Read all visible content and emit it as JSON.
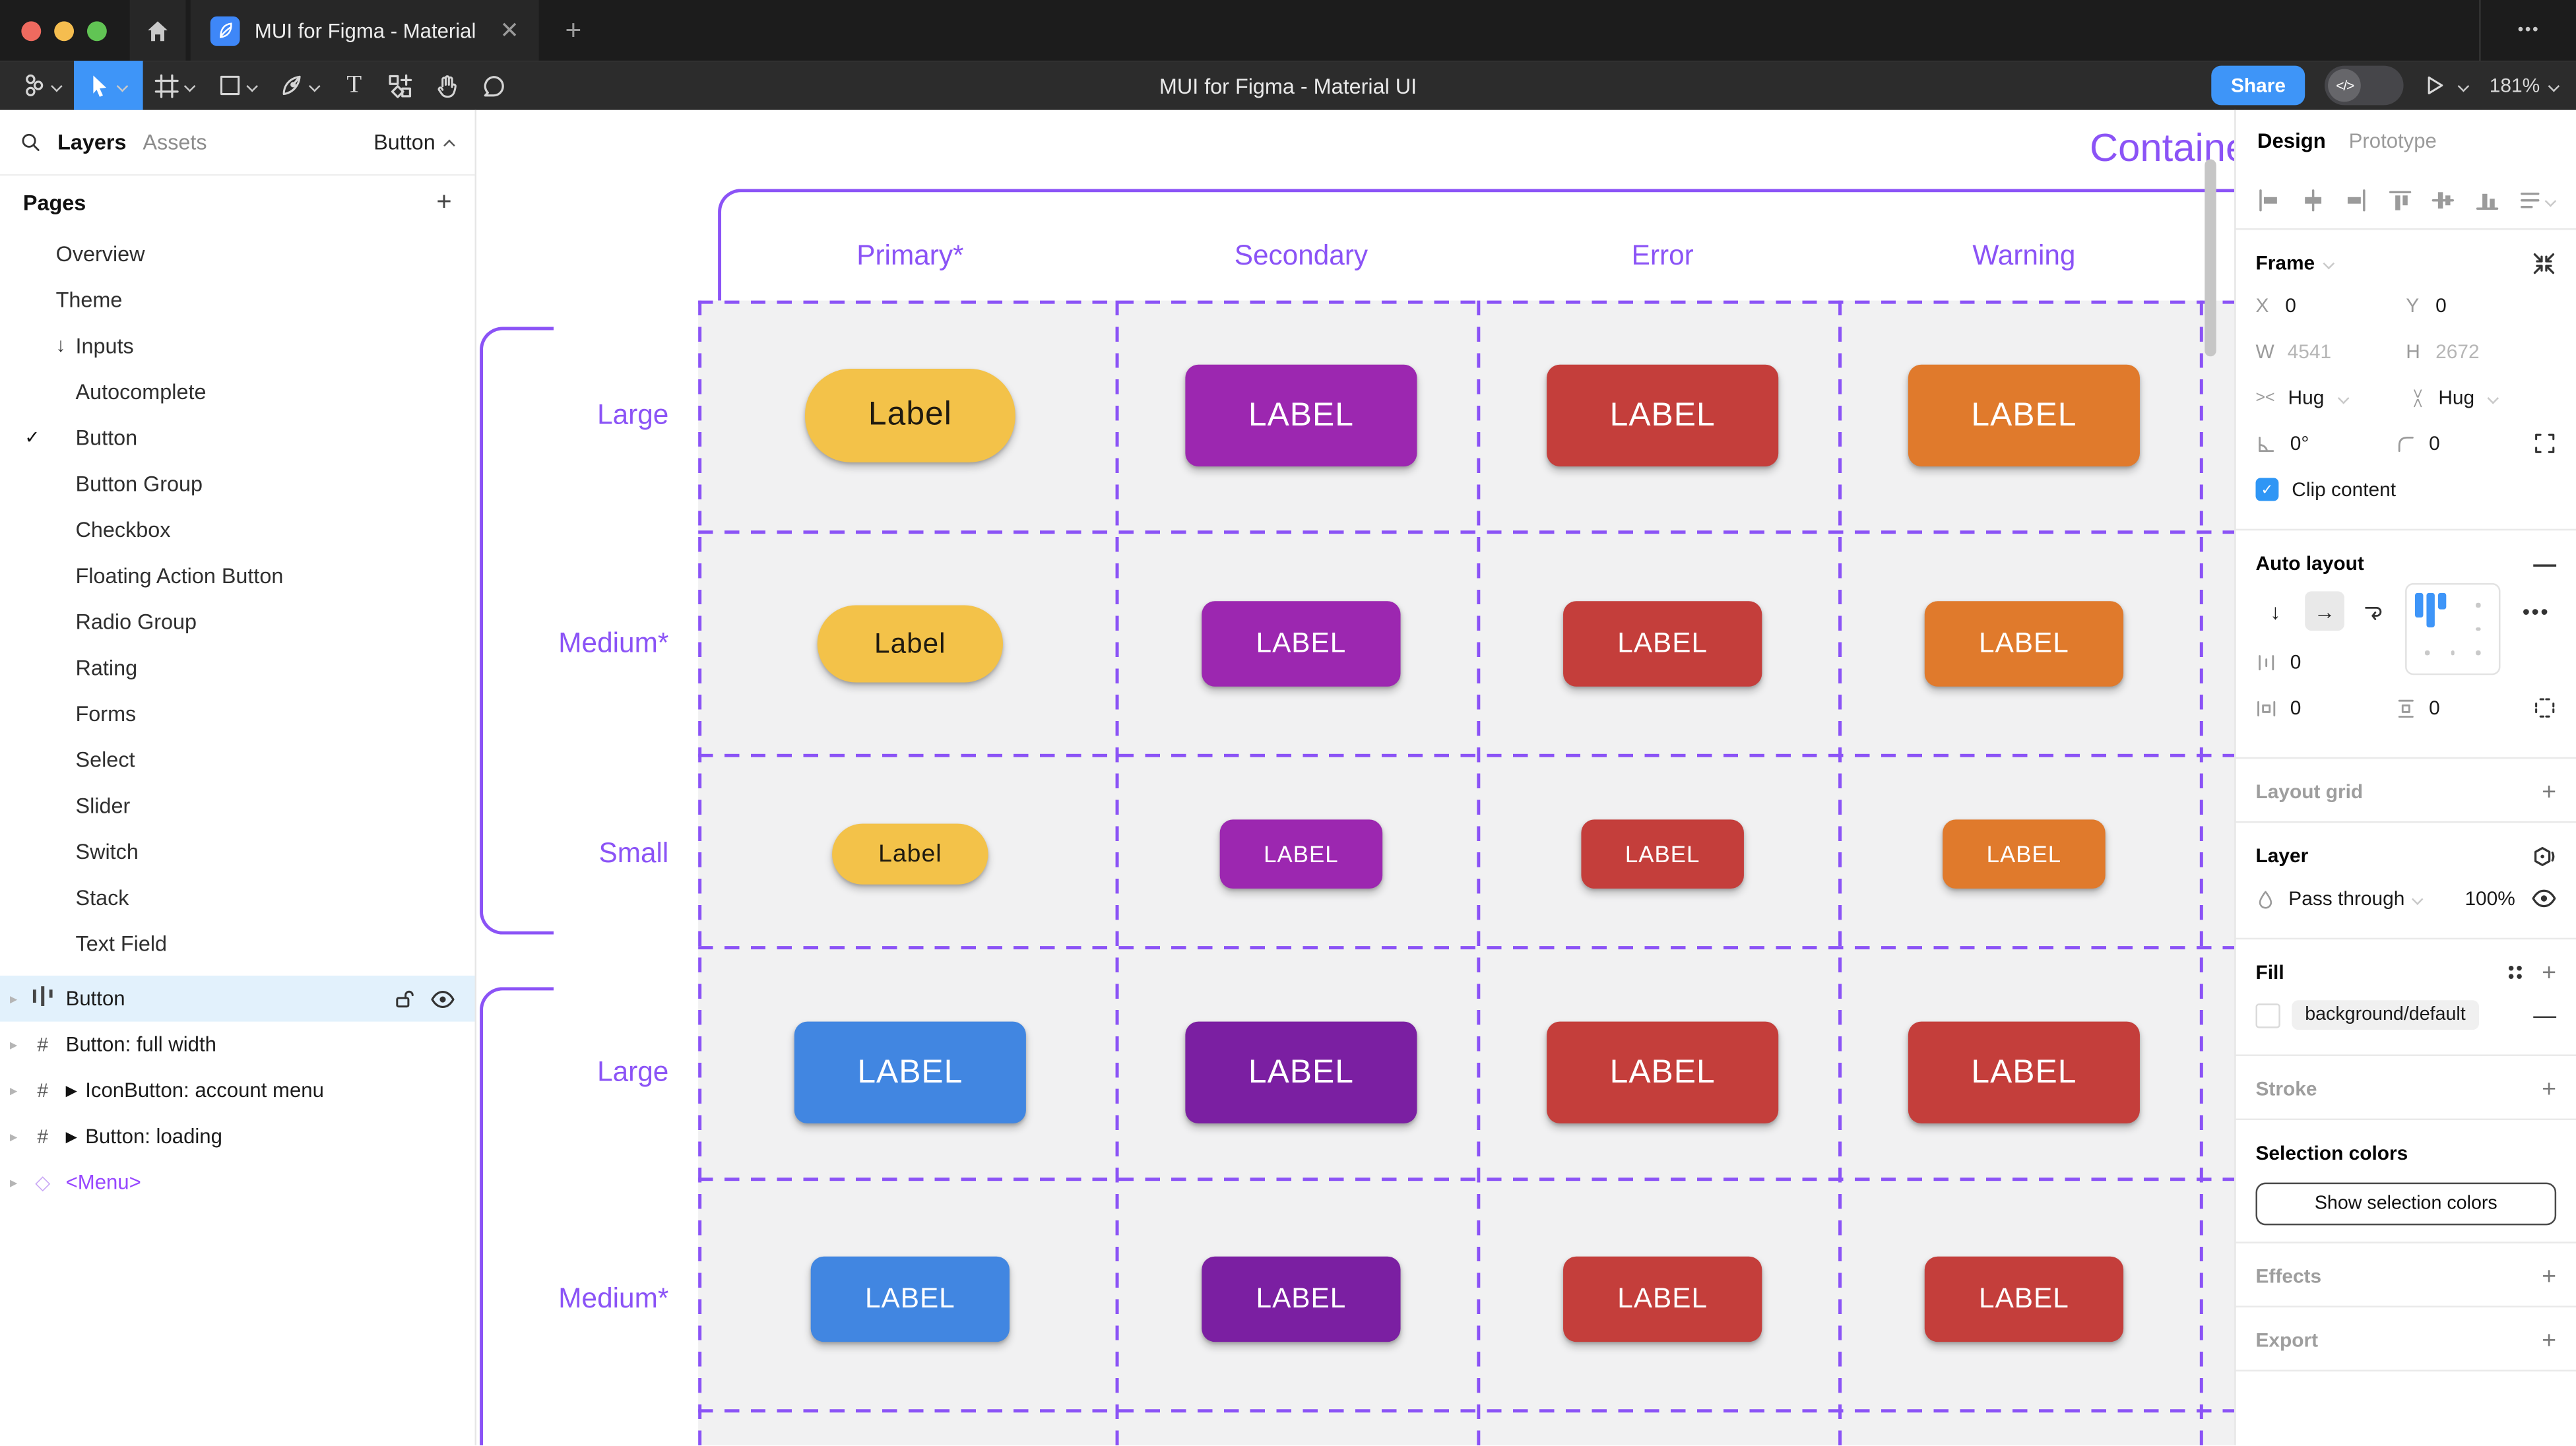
{
  "chrome": {
    "tab_title": "MUI for Figma - Material UI",
    "toolbar_title": "MUI for Figma - Material UI",
    "close_icon": "✕",
    "new_tab_icon": "+",
    "overflow_icon": "•••",
    "share_label": "Share",
    "dev_toggle_glyph": "</>",
    "zoom_level": "181%"
  },
  "palette": {
    "figma_blue": "#3E95F8",
    "accent_purple": "#8B53F6",
    "traffic_red": "#EE6A5F",
    "traffic_yellow": "#F5BD4F",
    "traffic_green": "#61C454",
    "selected_layer_bg": "#E2F1FC",
    "primary_yellow": "#F3C249",
    "primary_blue": "#4186E1",
    "secondary_purple": "#9C27B0",
    "secondary_dark_purple": "#7B1FA2",
    "error_red": "#C43E3B",
    "warning_orange": "#E07A2C"
  },
  "left_sidebar": {
    "tabs": [
      {
        "label": "Layers",
        "active": true
      },
      {
        "label": "Assets",
        "active": false
      }
    ],
    "collapse_label": "Button",
    "pages_header": "Pages",
    "pages": [
      {
        "label": "Overview",
        "indent": 0
      },
      {
        "label": "Theme",
        "indent": 0
      },
      {
        "label": "Inputs",
        "indent": 0,
        "prefix": "↓"
      },
      {
        "label": "Autocomplete",
        "indent": 1
      },
      {
        "label": "Button",
        "indent": 1,
        "current": true
      },
      {
        "label": "Button Group",
        "indent": 1
      },
      {
        "label": "Checkbox",
        "indent": 1
      },
      {
        "label": "Floating Action Button",
        "indent": 1
      },
      {
        "label": "Radio Group",
        "indent": 1
      },
      {
        "label": "Rating",
        "indent": 1
      },
      {
        "label": "Forms",
        "indent": 1
      },
      {
        "label": "Select",
        "indent": 1
      },
      {
        "label": "Slider",
        "indent": 1
      },
      {
        "label": "Switch",
        "indent": 1
      },
      {
        "label": "Stack",
        "indent": 1
      },
      {
        "label": "Text Field",
        "indent": 1
      }
    ],
    "layers": [
      {
        "label": "Button",
        "icon": "autolayout",
        "selected": true
      },
      {
        "label": "Button: full width",
        "icon": "frame"
      },
      {
        "label": "IconButton: account menu",
        "icon": "frame",
        "play": true
      },
      {
        "label": "Button: loading",
        "icon": "frame",
        "play": true
      },
      {
        "label": "<Menu>",
        "icon": "instance",
        "purple": true
      }
    ]
  },
  "canvas": {
    "frame_title": "Contained",
    "columns": [
      "Primary*",
      "Secondary",
      "Error",
      "Warning"
    ],
    "rows": [
      {
        "label": "Large",
        "size": "lg",
        "buttons": [
          {
            "text": "Label",
            "color": "primary_yellow",
            "shape": "pill",
            "dark_text": true
          },
          {
            "text": "LABEL",
            "color": "secondary_purple"
          },
          {
            "text": "LABEL",
            "color": "error_red"
          },
          {
            "text": "LABEL",
            "color": "warning_orange"
          }
        ]
      },
      {
        "label": "Medium*",
        "size": "md",
        "buttons": [
          {
            "text": "Label",
            "color": "primary_yellow",
            "shape": "pill",
            "dark_text": true
          },
          {
            "text": "LABEL",
            "color": "secondary_purple"
          },
          {
            "text": "LABEL",
            "color": "error_red"
          },
          {
            "text": "LABEL",
            "color": "warning_orange"
          }
        ]
      },
      {
        "label": "Small",
        "size": "sm",
        "buttons": [
          {
            "text": "Label",
            "color": "primary_yellow",
            "shape": "pill",
            "dark_text": true
          },
          {
            "text": "LABEL",
            "color": "secondary_purple"
          },
          {
            "text": "LABEL",
            "color": "error_red"
          },
          {
            "text": "LABEL",
            "color": "warning_orange"
          }
        ]
      },
      {
        "label": "Large",
        "size": "lg",
        "buttons": [
          {
            "text": "LABEL",
            "color": "primary_blue"
          },
          {
            "text": "LABEL",
            "color": "secondary_dark_purple"
          },
          {
            "text": "LABEL",
            "color": "error_red"
          },
          {
            "text": "LABEL",
            "color": "error_red"
          }
        ]
      },
      {
        "label": "Medium*",
        "size": "md",
        "buttons": [
          {
            "text": "LABEL",
            "color": "primary_blue"
          },
          {
            "text": "LABEL",
            "color": "secondary_dark_purple"
          },
          {
            "text": "LABEL",
            "color": "error_red"
          },
          {
            "text": "LABEL",
            "color": "error_red"
          }
        ]
      }
    ]
  },
  "right_panel": {
    "tabs": [
      {
        "label": "Design",
        "active": true
      },
      {
        "label": "Prototype",
        "active": false
      }
    ],
    "frame": {
      "header": "Frame",
      "x_label": "X",
      "x": "0",
      "y_label": "Y",
      "y": "0",
      "w_label": "W",
      "w": "4541",
      "h_label": "H",
      "h": "2672",
      "h_sizing": "Hug",
      "v_sizing": "Hug",
      "rotation": "0°",
      "corner_radius": "0",
      "clip_label": "Clip content",
      "clip_checked": true
    },
    "auto_layout": {
      "header": "Auto layout",
      "gap": "0",
      "padding_h": "0",
      "padding_v": "0"
    },
    "layout_grid": {
      "header": "Layout grid"
    },
    "layer": {
      "header": "Layer",
      "blend_mode": "Pass through",
      "opacity": "100%"
    },
    "fill": {
      "header": "Fill",
      "style": "background/default"
    },
    "stroke": {
      "header": "Stroke"
    },
    "selection_colors": {
      "header": "Selection colors",
      "show_button": "Show selection colors"
    },
    "effects": {
      "header": "Effects"
    },
    "export": {
      "header": "Export"
    }
  }
}
